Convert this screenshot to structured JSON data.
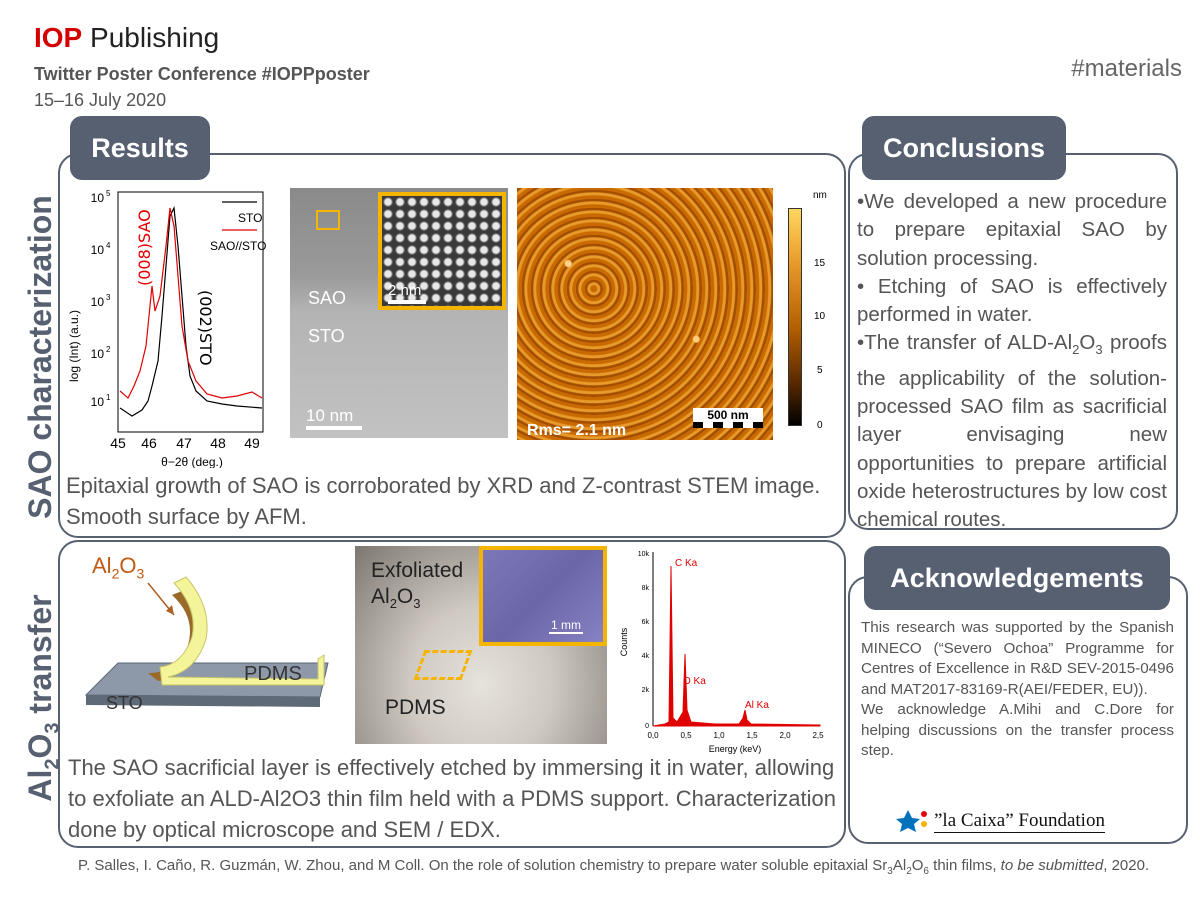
{
  "header": {
    "brand_bold": "IOP",
    "brand_rest": " Publishing",
    "conference": "Twitter Poster Conference #IOPPposter",
    "dates": "15–16 July 2020",
    "hashtag": "#materials"
  },
  "side_labels": {
    "sao": "SAO characterization",
    "transfer_prefix": "Al",
    "transfer_sub1": "2",
    "transfer_mid": "O",
    "transfer_sub2": "3",
    "transfer_suffix": " transfer"
  },
  "results": {
    "tab": "Results",
    "xrd": {
      "ylabel": "log (Int) (a.u.)",
      "xlabel": "θ−2θ (deg.)",
      "yticks": [
        "10",
        "10",
        "10",
        "10",
        "10"
      ],
      "yexp": [
        "5",
        "4",
        "3",
        "2",
        "1"
      ],
      "xticks": [
        "45",
        "46",
        "47",
        "48",
        "49"
      ],
      "legend": [
        "STO",
        "SAO//STO"
      ],
      "peak_labels": [
        "(008)SAO",
        "(002)STO"
      ]
    },
    "stem": {
      "label_sao": "SAO",
      "label_sto": "STO",
      "scale": "10 nm",
      "inset_scale": "2 nm"
    },
    "afm": {
      "rms": "Rms= 2.1 nm",
      "scale": "500 nm",
      "unit": "nm",
      "ticks": [
        "15",
        "10",
        "5",
        "0"
      ]
    },
    "caption": "Epitaxial growth of SAO is corroborated by XRD and Z-contrast STEM image. Smooth surface by AFM."
  },
  "conclusions": {
    "tab": "Conclusions",
    "p1": "•We developed a new procedure to prepare epitaxial SAO by solution processing.",
    "p2": "• Etching of SAO is effectively performed in water.",
    "p3a": "•The transfer of ALD-Al",
    "p3s1": "2",
    "p3b": "O",
    "p3s2": "3",
    "p3c": " proofs the applicability of the solution-processed SAO film as sacrificial layer envisaging new opportunities to prepare artificial oxide heterostructures by low cost chemical routes."
  },
  "transfer": {
    "schematic": {
      "al2o3_a": "Al",
      "al2o3_s1": "2",
      "al2o3_b": "O",
      "al2o3_s2": "3",
      "pdms": "PDMS",
      "sto": "STO"
    },
    "photo": {
      "exf": "Exfoliated",
      "al_a": "Al",
      "al_s1": "2",
      "al_b": "O",
      "al_s2": "3",
      "pdms": "PDMS",
      "scale": "1 mm"
    },
    "edx": {
      "ylabel": "Counts",
      "xlabel": "Energy (keV)",
      "yticks": [
        "10k",
        "8k",
        "6k",
        "4k",
        "2k",
        "0"
      ],
      "xticks": [
        "0,0",
        "0,5",
        "1,0",
        "1,5",
        "2,0",
        "2,5"
      ],
      "peaks": [
        "C Ka",
        "O Ka",
        "Al Ka"
      ]
    },
    "caption": "The SAO sacrificial layer is effectively etched by immersing it in water, allowing to exfoliate an ALD-Al2O3 thin film held with a PDMS support. Characterization done by optical microscope and SEM / EDX."
  },
  "acknowledgements": {
    "tab": "Acknowledgements",
    "text1": "This research was supported by the Spanish MINECO (“Severo Ochoa” Programme for Centres of Excellence in R&D SEV-2015-0496 and MAT2017-83169-R(AEI/FEDER, EU)).",
    "text2": "We acknowledge A.Mihi and C.Dore for helping discussions on the transfer process step.",
    "logo_text": "”la Caixa” Foundation"
  },
  "reference": {
    "a": "P. Salles, I. Caño, R. Guzmán, W. Zhou, and M Coll. On the role of solution chemistry to prepare water soluble epitaxial Sr",
    "s1": "3",
    "b": "Al",
    "s2": "2",
    "c": "O",
    "s3": "6",
    "d": " thin films, ",
    "italic": "to be submitted",
    "e": ", 2020."
  },
  "colors": {
    "panel": "#576070",
    "accent_red": "#d40000",
    "highlight": "#f5b400"
  }
}
